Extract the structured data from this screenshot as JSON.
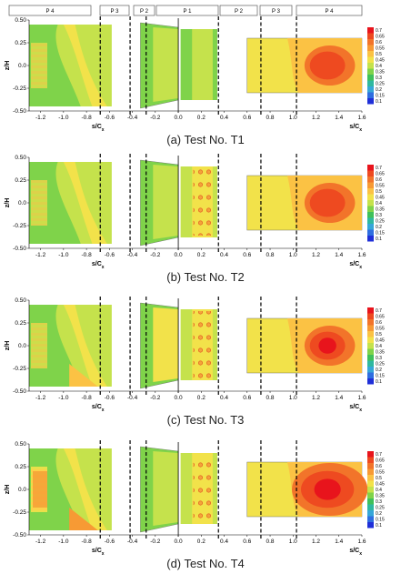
{
  "header_labels": [
    "P 4",
    "P 3",
    "P 2",
    "P 1",
    "P 2",
    "P 3",
    "P 4"
  ],
  "x_ticks": [
    "-1.2",
    "-1.0",
    "-0.8",
    "-0.6",
    "-0.4",
    "-0.2",
    "0.0",
    "0.2",
    "0.4",
    "0.6",
    "0.8",
    "1.0",
    "1.2",
    "1.4",
    "1.6"
  ],
  "y_ticks": [
    "0.50",
    "0.25",
    "0.0",
    "-0.25",
    "-0.50"
  ],
  "y_label": "z/H",
  "x_label": "s/C",
  "x_label_sub": "x",
  "colorbar_ticks": [
    "0.7",
    "0.65",
    "0.6",
    "0.55",
    "0.5",
    "0.45",
    "0.4",
    "0.35",
    "0.3",
    "0.25",
    "0.2",
    "0.15",
    "0.1"
  ],
  "colorbar_colors": [
    "#e8141c",
    "#ee4a20",
    "#f2742a",
    "#f79a34",
    "#fbc244",
    "#f2e24a",
    "#c5e24c",
    "#7fd34a",
    "#3fc05a",
    "#2fb8a0",
    "#36a6d8",
    "#2f6ee0",
    "#1f2fd8"
  ],
  "captions": [
    "(a) Test No. T1",
    "(b) Test No. T2",
    "(c) Test No. T3",
    "(d) Test No. T4"
  ],
  "chart_data": [
    {
      "type": "heatmap",
      "title": "(a) Test No. T1",
      "xlabel": "s/Cx",
      "ylabel": "z/H",
      "xlim": [
        -1.3,
        1.6
      ],
      "ylim": [
        -0.5,
        0.5
      ],
      "colorbar_range": [
        0.1,
        0.7
      ],
      "peak_location": [
        1.3,
        0.0
      ]
    },
    {
      "type": "heatmap",
      "title": "(b) Test No. T2",
      "xlabel": "s/Cx",
      "ylabel": "z/H",
      "xlim": [
        -1.3,
        1.6
      ],
      "ylim": [
        -0.5,
        0.5
      ],
      "colorbar_range": [
        0.1,
        0.7
      ],
      "peak_location": [
        1.3,
        0.05
      ]
    },
    {
      "type": "heatmap",
      "title": "(c) Test No. T3",
      "xlabel": "s/Cx",
      "ylabel": "z/H",
      "xlim": [
        -1.3,
        1.6
      ],
      "ylim": [
        -0.5,
        0.5
      ],
      "colorbar_range": [
        0.1,
        0.7
      ],
      "peak_location": [
        1.3,
        0.0
      ]
    },
    {
      "type": "heatmap",
      "title": "(d) Test No. T4",
      "xlabel": "s/Cx",
      "ylabel": "z/H",
      "xlim": [
        -1.3,
        1.6
      ],
      "ylim": [
        -0.5,
        0.5
      ],
      "colorbar_range": [
        0.1,
        0.7
      ],
      "peak_location": [
        1.35,
        0.0
      ]
    }
  ]
}
